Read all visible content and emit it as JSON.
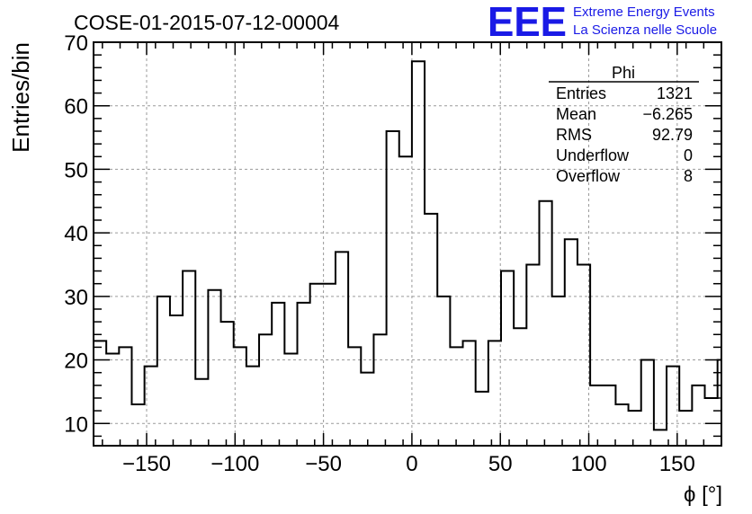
{
  "chart_data": {
    "type": "histogram",
    "title": "COSE-01-2015-07-12-00004",
    "xlabel": "ϕ [°]",
    "ylabel": "Entries/bin",
    "xlim": [
      -180,
      175
    ],
    "ylim": [
      6.5,
      70
    ],
    "grid": true,
    "bin_width": 7.2,
    "x_ticks": [
      -150,
      -100,
      -50,
      0,
      50,
      100,
      150
    ],
    "y_ticks": [
      10,
      20,
      30,
      40,
      50,
      60,
      70
    ],
    "bin_edges_start": -180,
    "counts": [
      23,
      21,
      22,
      13,
      19,
      30,
      27,
      34,
      17,
      31,
      26,
      22,
      19,
      24,
      29,
      21,
      29,
      32,
      32,
      37,
      22,
      18,
      24,
      56,
      52,
      67,
      43,
      30,
      22,
      23,
      15,
      23,
      34,
      25,
      35,
      45,
      30,
      39,
      35,
      16,
      16,
      13,
      12,
      20,
      9,
      19,
      12,
      16,
      14,
      20
    ],
    "stats_box": {
      "title": "Phi",
      "rows": [
        {
          "label": "Entries",
          "value": "1321"
        },
        {
          "label": "Mean",
          "value": "−6.265"
        },
        {
          "label": "RMS",
          "value": "92.79"
        },
        {
          "label": "Underflow",
          "value": "0"
        },
        {
          "label": "Overflow",
          "value": "8"
        }
      ]
    }
  },
  "branding": {
    "logo": "EEE",
    "line1": "Extreme Energy Events",
    "line2": "La Scienza nelle Scuole",
    "color": "#1a1ae6"
  }
}
